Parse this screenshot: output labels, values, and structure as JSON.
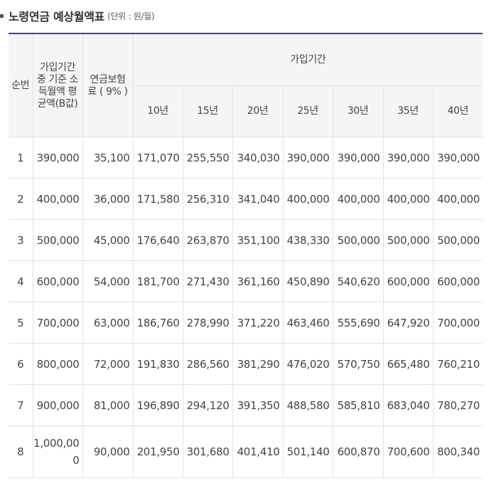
{
  "title": "노령연금 예상월액표",
  "unit": "(단위 : 원/월)",
  "headers": {
    "no": "순번",
    "income": "가입기간 중 기준 소득월액 평균액(B값)",
    "premium": "연금보험료 ( 9% )",
    "period": "가입기간",
    "years": [
      "10년",
      "15년",
      "20년",
      "25년",
      "30년",
      "35년",
      "40년"
    ]
  },
  "rows": [
    {
      "no": "1",
      "income": "390,000",
      "premium": "35,100",
      "values": [
        "171,070",
        "255,550",
        "340,030",
        "390,000",
        "390,000",
        "390,000",
        "390,000"
      ]
    },
    {
      "no": "2",
      "income": "400,000",
      "premium": "36,000",
      "values": [
        "171,580",
        "256,310",
        "341,040",
        "400,000",
        "400,000",
        "400,000",
        "400,000"
      ]
    },
    {
      "no": "3",
      "income": "500,000",
      "premium": "45,000",
      "values": [
        "176,640",
        "263,870",
        "351,100",
        "438,330",
        "500,000",
        "500,000",
        "500,000"
      ]
    },
    {
      "no": "4",
      "income": "600,000",
      "premium": "54,000",
      "values": [
        "181,700",
        "271,430",
        "361,160",
        "450,890",
        "540,620",
        "600,000",
        "600,000"
      ]
    },
    {
      "no": "5",
      "income": "700,000",
      "premium": "63,000",
      "values": [
        "186,760",
        "278,990",
        "371,220",
        "463,460",
        "555,690",
        "647,920",
        "700,000"
      ]
    },
    {
      "no": "6",
      "income": "800,000",
      "premium": "72,000",
      "values": [
        "191,830",
        "286,560",
        "381,290",
        "476,020",
        "570,750",
        "665,480",
        "760,210"
      ]
    },
    {
      "no": "7",
      "income": "900,000",
      "premium": "81,000",
      "values": [
        "196,890",
        "294,120",
        "391,350",
        "488,580",
        "585,810",
        "683,040",
        "780,270"
      ]
    },
    {
      "no": "8",
      "income": "1,000,000",
      "premium": "90,000",
      "values": [
        "201,950",
        "301,680",
        "401,410",
        "501,140",
        "600,870",
        "700,600",
        "800,340"
      ]
    }
  ]
}
